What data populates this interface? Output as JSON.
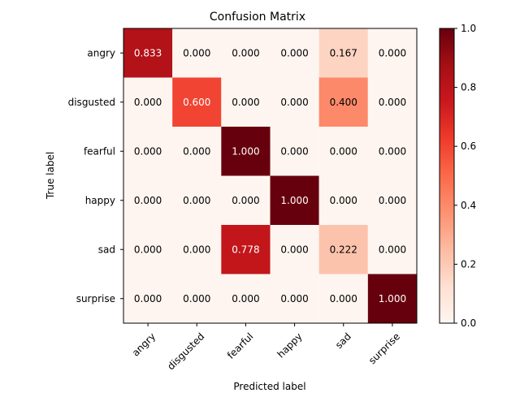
{
  "chart_data": {
    "type": "heatmap",
    "title": "Confusion Matrix",
    "xlabel": "Predicted label",
    "ylabel": "True label",
    "x_categories": [
      "angry",
      "disgusted",
      "fearful",
      "happy",
      "sad",
      "surprise"
    ],
    "y_categories": [
      "angry",
      "disgusted",
      "fearful",
      "happy",
      "sad",
      "surprise"
    ],
    "values": [
      [
        0.833,
        0.0,
        0.0,
        0.0,
        0.167,
        0.0
      ],
      [
        0.0,
        0.6,
        0.0,
        0.0,
        0.4,
        0.0
      ],
      [
        0.0,
        0.0,
        1.0,
        0.0,
        0.0,
        0.0
      ],
      [
        0.0,
        0.0,
        0.0,
        1.0,
        0.0,
        0.0
      ],
      [
        0.0,
        0.0,
        0.778,
        0.0,
        0.222,
        0.0
      ],
      [
        0.0,
        0.0,
        0.0,
        0.0,
        0.0,
        1.0
      ]
    ],
    "value_format": "0.000",
    "colormap": "Reds",
    "colorbar": {
      "range": [
        0,
        1
      ],
      "ticks": [
        "0.0",
        "0.2",
        "0.4",
        "0.6",
        "0.8",
        "1.0"
      ]
    },
    "text_colors": {
      "light_cell": "#000000",
      "dark_cell": "#ffffff"
    },
    "colors": {
      "low": "#fff5f0",
      "high": "#67000d"
    },
    "grid": false
  }
}
